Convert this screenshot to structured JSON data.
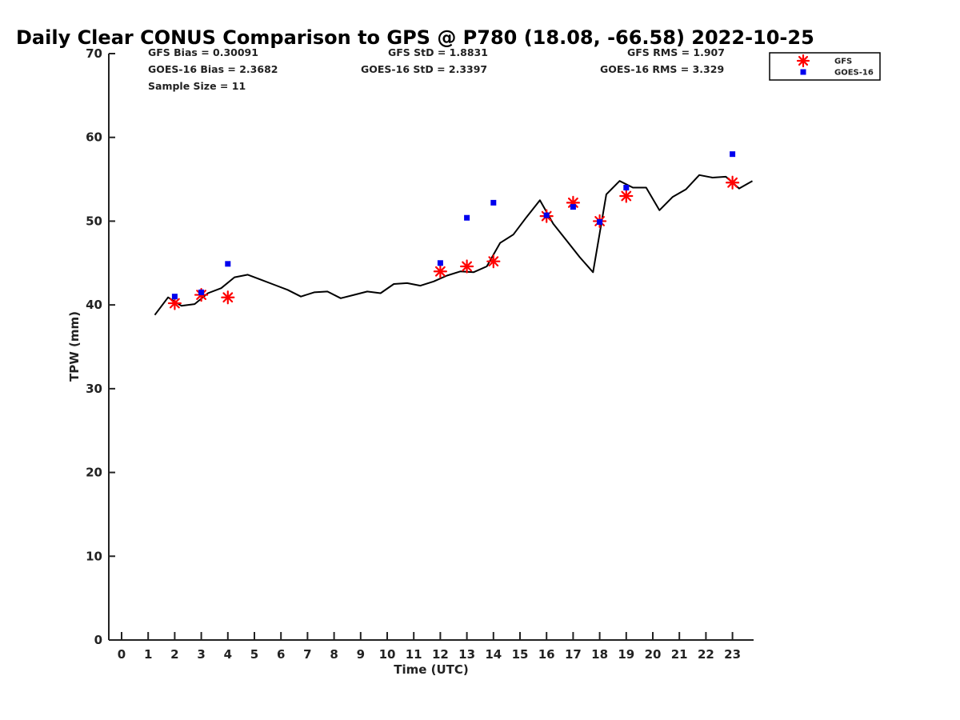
{
  "chart_data": {
    "type": "scatter",
    "title": "Daily Clear CONUS Comparison to GPS @ P780 (18.08, -66.58) 2022-10-25",
    "xlabel": "Time (UTC)",
    "ylabel": "TPW (mm)",
    "ylim": [
      0,
      70
    ],
    "yticks": [
      0,
      10,
      20,
      30,
      40,
      50,
      60,
      70
    ],
    "xticks": [
      "0",
      "1",
      "2",
      "3",
      "4",
      "5",
      "6",
      "7",
      "8",
      "9",
      "10",
      "11",
      "12",
      "13",
      "14",
      "15",
      "16",
      "17",
      "18",
      "19",
      "20",
      "21",
      "22",
      "23"
    ],
    "grid": false,
    "legend_position": "top-right",
    "stats": [
      {
        "text": "GFS Bias = 0.30091"
      },
      {
        "text": "GFS StD = 1.8831"
      },
      {
        "text": "GFS RMS = 1.907"
      },
      {
        "text": "GOES-16 Bias = 2.3682"
      },
      {
        "text": "GOES-16 StD = 2.3397"
      },
      {
        "text": "GOES-16 RMS = 3.329"
      },
      {
        "text": "Sample Size = 11"
      }
    ],
    "line": {
      "color": "#000000",
      "x": [
        1.25,
        1.75,
        2.25,
        2.75,
        3.25,
        3.75,
        4.25,
        4.75,
        5.25,
        5.75,
        6.25,
        6.75,
        7.25,
        7.75,
        8.25,
        8.75,
        9.25,
        9.75,
        10.25,
        10.75,
        11.25,
        11.75,
        12.25,
        12.75,
        13.25,
        13.75,
        14.25,
        14.75,
        15.25,
        15.75,
        16.25,
        16.75,
        17.25,
        17.75,
        18.25,
        18.75,
        19.25,
        19.75,
        20.25,
        20.75,
        21.25,
        21.75,
        22.25,
        22.75,
        23.25,
        23.75
      ],
      "y": [
        38.8,
        40.9,
        39.9,
        40.1,
        41.4,
        42.0,
        43.3,
        43.6,
        43.0,
        42.4,
        41.8,
        41.0,
        41.5,
        41.6,
        40.8,
        41.2,
        41.6,
        41.4,
        42.5,
        42.6,
        42.3,
        42.8,
        43.5,
        44.0,
        43.9,
        44.6,
        47.4,
        48.4,
        50.5,
        52.5,
        49.7,
        47.7,
        45.7,
        43.9,
        53.2,
        54.8,
        54.0,
        54.0,
        51.3,
        52.9,
        53.8,
        55.5,
        55.2,
        55.3,
        53.9,
        54.8
      ]
    },
    "series": [
      {
        "name": "GFS",
        "color": "#ff0000",
        "marker": "asterisk",
        "x": [
          2,
          3,
          4,
          12,
          13,
          14,
          16,
          17,
          18,
          19,
          23
        ],
        "values": [
          40.2,
          41.2,
          40.9,
          44.0,
          44.6,
          45.2,
          50.6,
          52.2,
          50.0,
          53.0,
          54.6
        ]
      },
      {
        "name": "GOES-16",
        "color": "#0000ee",
        "marker": "square",
        "x": [
          2,
          3,
          4,
          12,
          13,
          14,
          16,
          17,
          18,
          19,
          23
        ],
        "values": [
          41.0,
          41.5,
          44.9,
          45.0,
          50.4,
          52.2,
          50.7,
          51.7,
          49.9,
          54.0,
          58.0
        ]
      }
    ]
  }
}
